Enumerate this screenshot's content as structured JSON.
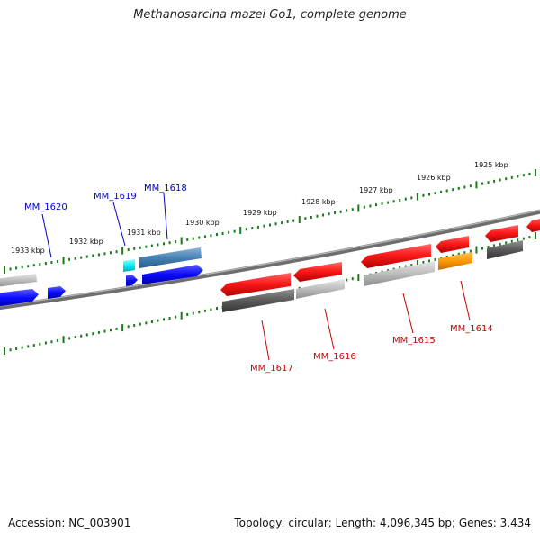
{
  "title": "Methanosarcina mazei Go1, complete genome",
  "footer": {
    "accession": "Accession: NC_003901",
    "summary": "Topology: circular; Length: 4,096,345 bp; Genes: 3,434"
  },
  "colors": {
    "forward_label": "#0000cc",
    "reverse_label": "#cc0000",
    "tick": "#1a7a1a",
    "backbone": "#777777"
  },
  "kbp_labels": [
    "1933 kbp",
    "1932 kbp",
    "1931 kbp",
    "1930 kbp",
    "1929 kbp",
    "1928 kbp",
    "1927 kbp",
    "1926 kbp",
    "1925 kbp"
  ],
  "genes_forward": [
    {
      "label": "MM_1620"
    },
    {
      "label": "MM_1619"
    },
    {
      "label": "MM_1618"
    }
  ],
  "genes_reverse": [
    {
      "label": "MM_1617"
    },
    {
      "label": "MM_1616"
    },
    {
      "label": "MM_1615"
    },
    {
      "label": "MM_1614"
    }
  ]
}
